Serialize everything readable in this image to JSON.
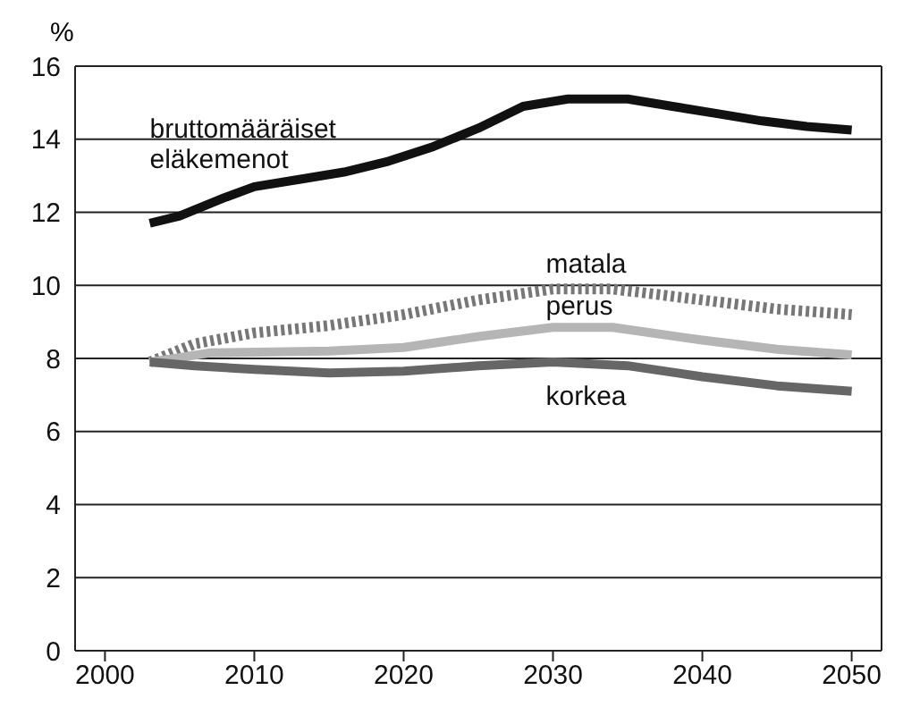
{
  "chart_data": {
    "type": "line",
    "ylabel": "%",
    "xlim": [
      1998,
      2052
    ],
    "xticks": [
      2000,
      2010,
      2020,
      2030,
      2040,
      2050
    ],
    "ylim": [
      0,
      16
    ],
    "yticks": [
      0,
      2,
      4,
      6,
      8,
      10,
      12,
      14,
      16
    ],
    "grid": "y",
    "marker": "none",
    "series": [
      {
        "name": "bruttomääräiset eläkemenot",
        "color": "#111111",
        "line_style": "solid",
        "x": [
          2003,
          2005,
          2008,
          2010,
          2013,
          2016,
          2019,
          2022,
          2025,
          2028,
          2031,
          2035,
          2038,
          2041,
          2044,
          2047,
          2050
        ],
        "values": [
          11.7,
          11.9,
          12.4,
          12.7,
          12.9,
          13.1,
          13.4,
          13.8,
          14.3,
          14.9,
          15.1,
          15.1,
          14.9,
          14.7,
          14.5,
          14.35,
          14.25
        ]
      },
      {
        "name": "matala",
        "color": "#777777",
        "line_style": "dotted",
        "x": [
          2003,
          2006,
          2010,
          2015,
          2020,
          2025,
          2030,
          2034,
          2040,
          2045,
          2050
        ],
        "values": [
          7.9,
          8.4,
          8.7,
          8.9,
          9.2,
          9.6,
          9.9,
          9.9,
          9.6,
          9.35,
          9.2
        ]
      },
      {
        "name": "perus",
        "color": "#b5b5b5",
        "line_style": "solid",
        "x": [
          2003,
          2007,
          2015,
          2020,
          2025,
          2030,
          2034,
          2040,
          2045,
          2050
        ],
        "values": [
          7.9,
          8.15,
          8.2,
          8.3,
          8.6,
          8.85,
          8.85,
          8.5,
          8.25,
          8.1
        ]
      },
      {
        "name": "korkea",
        "color": "#666666",
        "line_style": "solid",
        "x": [
          2003,
          2006,
          2010,
          2015,
          2020,
          2025,
          2030,
          2035,
          2040,
          2045,
          2050
        ],
        "values": [
          7.9,
          7.8,
          7.7,
          7.6,
          7.65,
          7.8,
          7.9,
          7.8,
          7.5,
          7.25,
          7.1
        ]
      }
    ]
  }
}
